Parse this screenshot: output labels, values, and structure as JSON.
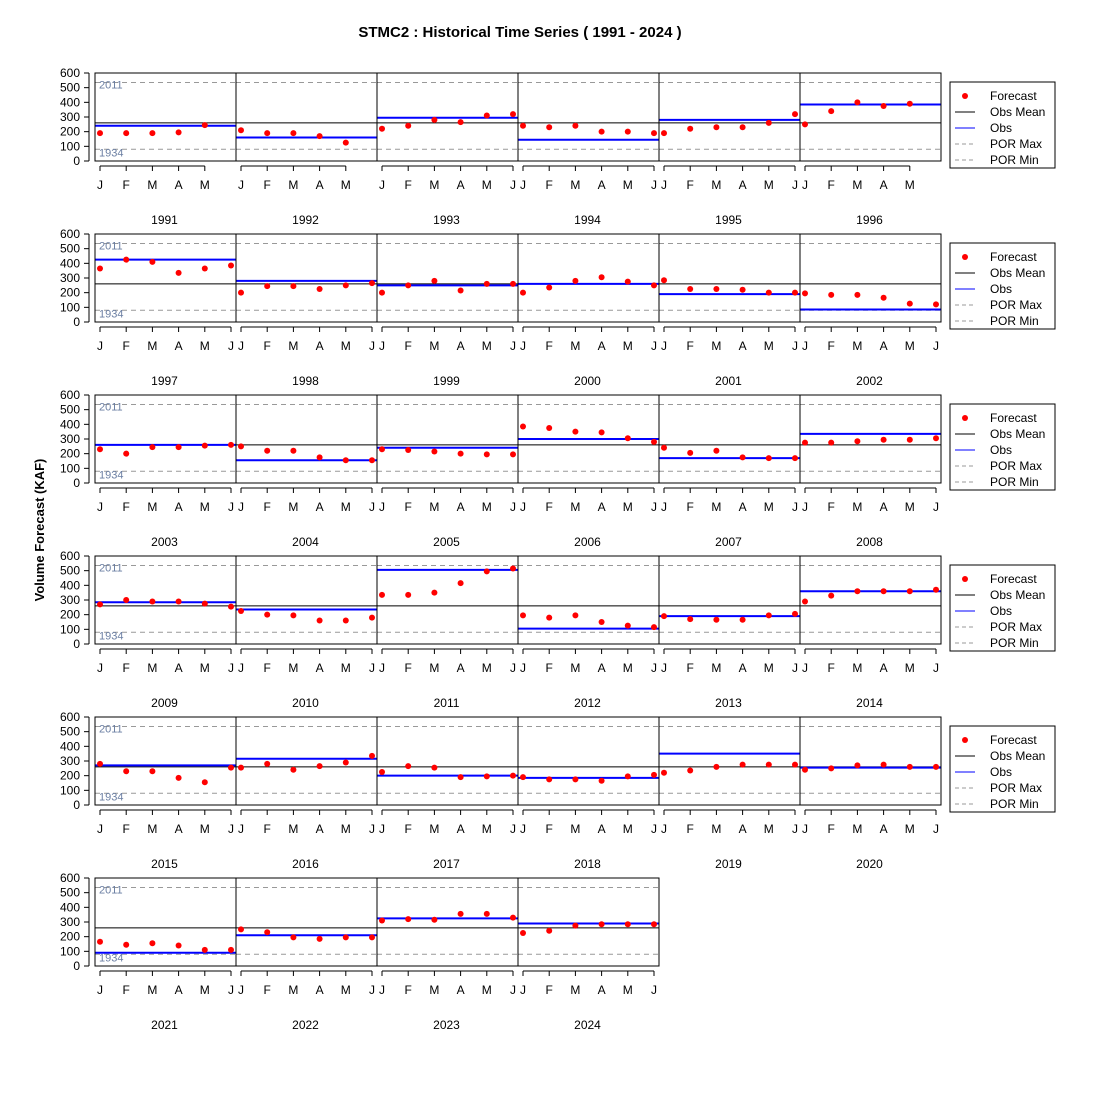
{
  "chart_data": {
    "type": "scatter",
    "title": "STMC2 : Historical Time Series ( 1991 - 2024 )",
    "ylabel": "Volume Forecast (KAF)",
    "ylim": [
      0,
      600
    ],
    "yticks": [
      0,
      100,
      200,
      300,
      400,
      500,
      600
    ],
    "obs_mean": 260,
    "por_max": {
      "value": 535,
      "label": "2011"
    },
    "por_min": {
      "value": 80,
      "label": "1934"
    },
    "legend": [
      "Forecast",
      "Obs Mean",
      "Obs",
      "POR Max",
      "POR Min"
    ],
    "legend_placement": "right of each row",
    "grid": false,
    "colors": {
      "forecast": "#ff0000",
      "obs": "#0000ff",
      "obs_mean": "#000000",
      "por": "#999999",
      "por_label": "#6b7fa3"
    },
    "years": [
      {
        "year": "1991",
        "months": [
          "J",
          "F",
          "M",
          "A",
          "M"
        ],
        "forecast": [
          190,
          190,
          190,
          195,
          245
        ],
        "obs": 240
      },
      {
        "year": "1992",
        "months": [
          "J",
          "F",
          "M",
          "A",
          "M"
        ],
        "forecast": [
          210,
          190,
          190,
          170,
          125
        ],
        "obs": 160
      },
      {
        "year": "1993",
        "months": [
          "J",
          "F",
          "M",
          "A",
          "M",
          "J"
        ],
        "forecast": [
          220,
          240,
          280,
          265,
          310,
          320
        ],
        "obs": 295
      },
      {
        "year": "1994",
        "months": [
          "J",
          "F",
          "M",
          "A",
          "M",
          "J"
        ],
        "forecast": [
          240,
          230,
          240,
          200,
          200,
          190
        ],
        "obs": 145
      },
      {
        "year": "1995",
        "months": [
          "J",
          "F",
          "M",
          "A",
          "M",
          "J"
        ],
        "forecast": [
          190,
          220,
          230,
          230,
          260,
          320
        ],
        "obs": 280
      },
      {
        "year": "1996",
        "months": [
          "J",
          "F",
          "M",
          "A",
          "M"
        ],
        "forecast": [
          250,
          340,
          400,
          375,
          390
        ],
        "obs": 385
      },
      {
        "year": "1997",
        "months": [
          "J",
          "F",
          "M",
          "A",
          "M",
          "J"
        ],
        "forecast": [
          365,
          425,
          410,
          335,
          365,
          385
        ],
        "obs": 425
      },
      {
        "year": "1998",
        "months": [
          "J",
          "F",
          "M",
          "A",
          "M",
          "J"
        ],
        "forecast": [
          200,
          245,
          245,
          225,
          250,
          265
        ],
        "obs": 280
      },
      {
        "year": "1999",
        "months": [
          "J",
          "F",
          "M",
          "A",
          "M",
          "J"
        ],
        "forecast": [
          200,
          250,
          280,
          215,
          260,
          260
        ],
        "obs": 250
      },
      {
        "year": "2000",
        "months": [
          "J",
          "F",
          "M",
          "A",
          "M",
          "J"
        ],
        "forecast": [
          200,
          235,
          280,
          305,
          275,
          250
        ],
        "obs": 260
      },
      {
        "year": "2001",
        "months": [
          "J",
          "F",
          "M",
          "A",
          "M",
          "J"
        ],
        "forecast": [
          285,
          225,
          225,
          220,
          200,
          200
        ],
        "obs": 190
      },
      {
        "year": "2002",
        "months": [
          "J",
          "F",
          "M",
          "A",
          "M",
          "J"
        ],
        "forecast": [
          195,
          185,
          185,
          165,
          125,
          120
        ],
        "obs": 85
      },
      {
        "year": "2003",
        "months": [
          "J",
          "F",
          "M",
          "A",
          "M",
          "J"
        ],
        "forecast": [
          230,
          200,
          245,
          245,
          255,
          260
        ],
        "obs": 260
      },
      {
        "year": "2004",
        "months": [
          "J",
          "F",
          "M",
          "A",
          "M",
          "J"
        ],
        "forecast": [
          250,
          220,
          220,
          175,
          155,
          155
        ],
        "obs": 155
      },
      {
        "year": "2005",
        "months": [
          "J",
          "F",
          "M",
          "A",
          "M",
          "J"
        ],
        "forecast": [
          230,
          225,
          215,
          200,
          195,
          195
        ],
        "obs": 240
      },
      {
        "year": "2006",
        "months": [
          "J",
          "F",
          "M",
          "A",
          "M",
          "J"
        ],
        "forecast": [
          385,
          375,
          350,
          345,
          305,
          280
        ],
        "obs": 300
      },
      {
        "year": "2007",
        "months": [
          "J",
          "F",
          "M",
          "A",
          "M",
          "J"
        ],
        "forecast": [
          240,
          205,
          220,
          175,
          170,
          170
        ],
        "obs": 170
      },
      {
        "year": "2008",
        "months": [
          "J",
          "F",
          "M",
          "A",
          "M",
          "J"
        ],
        "forecast": [
          275,
          275,
          285,
          295,
          295,
          305
        ],
        "obs": 335
      },
      {
        "year": "2009",
        "months": [
          "J",
          "F",
          "M",
          "A",
          "M",
          "J"
        ],
        "forecast": [
          270,
          300,
          290,
          290,
          275,
          255
        ],
        "obs": 285
      },
      {
        "year": "2010",
        "months": [
          "J",
          "F",
          "M",
          "A",
          "M",
          "J"
        ],
        "forecast": [
          225,
          200,
          195,
          160,
          160,
          180
        ],
        "obs": 235
      },
      {
        "year": "2011",
        "months": [
          "J",
          "F",
          "M",
          "A",
          "M",
          "J"
        ],
        "forecast": [
          335,
          335,
          350,
          415,
          495,
          515
        ],
        "obs": 505
      },
      {
        "year": "2012",
        "months": [
          "J",
          "F",
          "M",
          "A",
          "M",
          "J"
        ],
        "forecast": [
          195,
          180,
          195,
          150,
          125,
          115
        ],
        "obs": 105
      },
      {
        "year": "2013",
        "months": [
          "J",
          "F",
          "M",
          "A",
          "M",
          "J"
        ],
        "forecast": [
          190,
          170,
          165,
          165,
          195,
          205
        ],
        "obs": 190
      },
      {
        "year": "2014",
        "months": [
          "J",
          "F",
          "M",
          "A",
          "M",
          "J"
        ],
        "forecast": [
          290,
          330,
          360,
          360,
          360,
          370
        ],
        "obs": 360
      },
      {
        "year": "2015",
        "months": [
          "J",
          "F",
          "M",
          "A",
          "M",
          "J"
        ],
        "forecast": [
          280,
          230,
          230,
          185,
          155,
          255
        ],
        "obs": 270
      },
      {
        "year": "2016",
        "months": [
          "J",
          "F",
          "M",
          "A",
          "M",
          "J"
        ],
        "forecast": [
          255,
          280,
          240,
          265,
          290,
          335
        ],
        "obs": 315
      },
      {
        "year": "2017",
        "months": [
          "J",
          "F",
          "M",
          "A",
          "M",
          "J"
        ],
        "forecast": [
          225,
          265,
          255,
          190,
          195,
          200
        ],
        "obs": 200
      },
      {
        "year": "2018",
        "months": [
          "J",
          "F",
          "M",
          "A",
          "M",
          "J"
        ],
        "forecast": [
          190,
          175,
          175,
          165,
          195,
          205
        ],
        "obs": 185
      },
      {
        "year": "2019",
        "months": [
          "J",
          "F",
          "M",
          "A",
          "M",
          "J"
        ],
        "forecast": [
          220,
          235,
          260,
          275,
          275,
          275
        ],
        "obs": 350
      },
      {
        "year": "2020",
        "months": [
          "J",
          "F",
          "M",
          "A",
          "M",
          "J"
        ],
        "forecast": [
          240,
          250,
          270,
          275,
          260,
          260
        ],
        "obs": 255
      },
      {
        "year": "2021",
        "months": [
          "J",
          "F",
          "M",
          "A",
          "M",
          "J"
        ],
        "forecast": [
          165,
          145,
          155,
          140,
          110,
          110
        ],
        "obs": 90
      },
      {
        "year": "2022",
        "months": [
          "J",
          "F",
          "M",
          "A",
          "M",
          "J"
        ],
        "forecast": [
          250,
          230,
          195,
          185,
          195,
          195
        ],
        "obs": 210
      },
      {
        "year": "2023",
        "months": [
          "J",
          "F",
          "M",
          "A",
          "M",
          "J"
        ],
        "forecast": [
          310,
          320,
          315,
          355,
          355,
          330
        ],
        "obs": 325
      },
      {
        "year": "2024",
        "months": [
          "J",
          "F",
          "M",
          "A",
          "M",
          "J"
        ],
        "forecast": [
          225,
          240,
          275,
          285,
          285,
          285
        ],
        "obs": 290
      }
    ]
  }
}
